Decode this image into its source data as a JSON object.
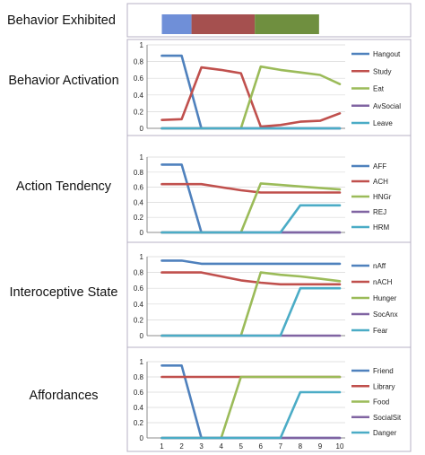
{
  "colors": {
    "frame": "#b7b0c4",
    "plot_axis": "#8c8c8c",
    "gridline": "#d9d9d9",
    "bar_blue": "#6f8fd8",
    "bar_red": "#a5504f",
    "bar_green": "#6f8f3f"
  },
  "behavior_exhibited": {
    "label": "Behavior Exhibited",
    "segments": [
      {
        "from": 1.0,
        "to": 2.5,
        "color": "#6f8fd8"
      },
      {
        "from": 2.5,
        "to": 5.7,
        "color": "#a5504f"
      },
      {
        "from": 5.7,
        "to": 8.95,
        "color": "#6f8f3f"
      }
    ]
  },
  "x_ticks": [
    "1",
    "2",
    "3",
    "4",
    "5",
    "6",
    "7",
    "8",
    "9",
    "10"
  ],
  "chart_data": [
    {
      "type": "line",
      "title": "Behavior Activation",
      "ylim": [
        0,
        1
      ],
      "y_ticks": [
        "0",
        "0.2",
        "0.4",
        "0.6",
        "0.8",
        "1"
      ],
      "x": [
        1,
        2,
        3,
        4,
        5,
        6,
        7,
        8,
        9,
        10
      ],
      "series": [
        {
          "name": "Hangout",
          "color": "#4f81bd",
          "values": [
            0.87,
            0.87,
            0,
            0,
            0,
            0,
            0,
            0,
            0,
            0
          ]
        },
        {
          "name": "Study",
          "color": "#c0504d",
          "values": [
            0.1,
            0.11,
            0.73,
            0.7,
            0.66,
            0.02,
            0.04,
            0.08,
            0.09,
            0.18
          ]
        },
        {
          "name": "Eat",
          "color": "#9bbb59",
          "values": [
            0,
            0,
            0,
            0,
            0,
            0.74,
            0.7,
            0.67,
            0.64,
            0.53
          ]
        },
        {
          "name": "AvSocial",
          "color": "#8064a2",
          "values": [
            0,
            0,
            0,
            0,
            0,
            0,
            0,
            0,
            0,
            0
          ]
        },
        {
          "name": "Leave",
          "color": "#4bacc6",
          "values": [
            0,
            0,
            0,
            0,
            0,
            0,
            0,
            0,
            0,
            0
          ]
        }
      ]
    },
    {
      "type": "line",
      "title": "Action Tendency",
      "ylim": [
        0,
        1
      ],
      "y_ticks": [
        "0",
        "0.2",
        "0.4",
        "0.6",
        "0.8",
        "1"
      ],
      "x": [
        1,
        2,
        3,
        4,
        5,
        6,
        7,
        8,
        9,
        10
      ],
      "series": [
        {
          "name": "AFF",
          "color": "#4f81bd",
          "values": [
            0.9,
            0.9,
            0,
            0,
            0,
            0,
            0,
            0,
            0,
            0
          ]
        },
        {
          "name": "ACH",
          "color": "#c0504d",
          "values": [
            0.64,
            0.64,
            0.64,
            0.6,
            0.56,
            0.53,
            0.53,
            0.53,
            0.53,
            0.53
          ]
        },
        {
          "name": "HNGr",
          "color": "#9bbb59",
          "values": [
            0,
            0,
            0,
            0,
            0,
            0.65,
            0.63,
            0.61,
            0.59,
            0.57
          ]
        },
        {
          "name": "REJ",
          "color": "#8064a2",
          "values": [
            0,
            0,
            0,
            0,
            0,
            0,
            0,
            0,
            0,
            0
          ]
        },
        {
          "name": "HRM",
          "color": "#4bacc6",
          "values": [
            0,
            0,
            0,
            0,
            0,
            0,
            0,
            0.36,
            0.36,
            0.36
          ]
        }
      ]
    },
    {
      "type": "line",
      "title": "Interoceptive State",
      "ylim": [
        0,
        1
      ],
      "y_ticks": [
        "0",
        "0.2",
        "0.4",
        "0.6",
        "0.8",
        "1"
      ],
      "x": [
        1,
        2,
        3,
        4,
        5,
        6,
        7,
        8,
        9,
        10
      ],
      "series": [
        {
          "name": "nAff",
          "color": "#4f81bd",
          "values": [
            0.95,
            0.95,
            0.91,
            0.91,
            0.91,
            0.91,
            0.91,
            0.91,
            0.91,
            0.91
          ]
        },
        {
          "name": "nACH",
          "color": "#c0504d",
          "values": [
            0.8,
            0.8,
            0.8,
            0.75,
            0.7,
            0.67,
            0.65,
            0.65,
            0.65,
            0.65
          ]
        },
        {
          "name": "Hunger",
          "color": "#9bbb59",
          "values": [
            0,
            0,
            0,
            0,
            0,
            0.8,
            0.77,
            0.75,
            0.72,
            0.69
          ]
        },
        {
          "name": "SocAnx",
          "color": "#8064a2",
          "values": [
            0,
            0,
            0,
            0,
            0,
            0,
            0,
            0,
            0,
            0
          ]
        },
        {
          "name": "Fear",
          "color": "#4bacc6",
          "values": [
            0,
            0,
            0,
            0,
            0,
            0,
            0,
            0.6,
            0.6,
            0.6
          ]
        }
      ]
    },
    {
      "type": "line",
      "title": "Affordances",
      "ylim": [
        0,
        1
      ],
      "y_ticks": [
        "0",
        "0.2",
        "0.4",
        "0.6",
        "0.8",
        "1"
      ],
      "x": [
        1,
        2,
        3,
        4,
        5,
        6,
        7,
        8,
        9,
        10
      ],
      "series": [
        {
          "name": "Friend",
          "color": "#4f81bd",
          "values": [
            0.95,
            0.95,
            0,
            0,
            0,
            0,
            0,
            0,
            0,
            0
          ]
        },
        {
          "name": "Library",
          "color": "#c0504d",
          "values": [
            0.8,
            0.8,
            0.8,
            0.8,
            0.8,
            0.8,
            0.8,
            0.8,
            0.8,
            0.8
          ]
        },
        {
          "name": "Food",
          "color": "#9bbb59",
          "values": [
            0,
            0,
            0,
            0,
            0.8,
            0.8,
            0.8,
            0.8,
            0.8,
            0.8
          ]
        },
        {
          "name": "SocialSit",
          "color": "#8064a2",
          "values": [
            0,
            0,
            0,
            0,
            0,
            0,
            0,
            0,
            0,
            0
          ]
        },
        {
          "name": "Danger",
          "color": "#4bacc6",
          "values": [
            0,
            0,
            0,
            0,
            0,
            0,
            0,
            0.6,
            0.6,
            0.6
          ]
        }
      ]
    }
  ]
}
